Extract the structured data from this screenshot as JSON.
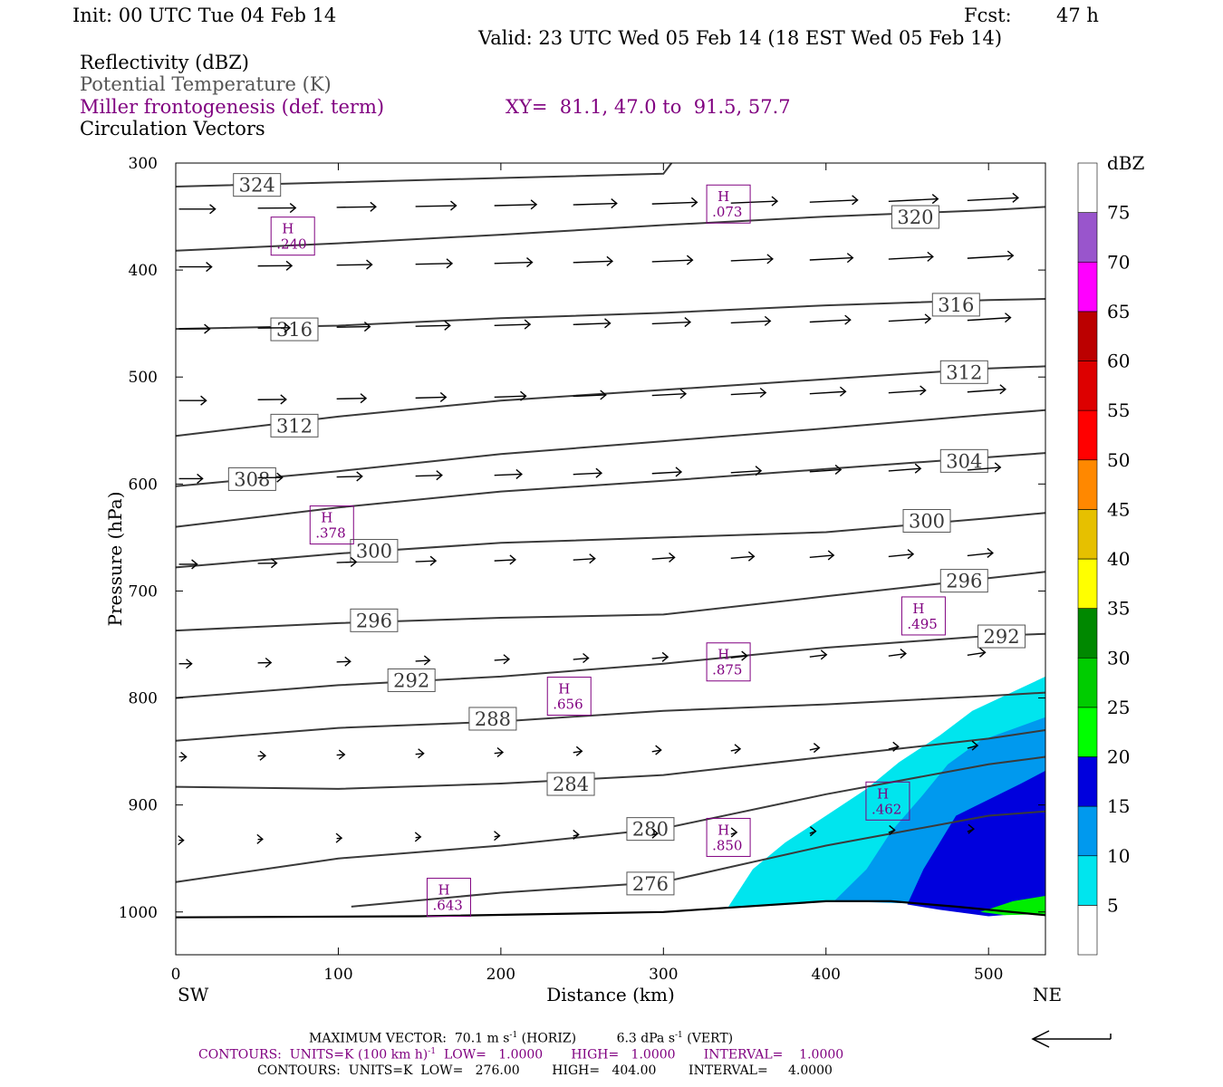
{
  "header": {
    "init": "Init: 00 UTC Tue 04 Feb 14",
    "fcst_label": "Fcst:",
    "fcst_value": "47 h",
    "valid": "Valid: 23 UTC Wed 05 Feb 14 (18 EST Wed 05 Feb 14)"
  },
  "fields": {
    "reflectivity": "Reflectivity (dBZ)",
    "potential_temp": "Potential Temperature (K)",
    "miller": "Miller frontogenesis (def. term)",
    "xy": "XY=  81.1, 47.0 to  91.5, 57.7",
    "vectors": "Circulation Vectors"
  },
  "colors": {
    "purple": "#800080",
    "isentrope": "#3a3a3a",
    "gray_text": "#555555"
  },
  "chart_data": {
    "type": "cross-section",
    "xlabel": "Distance (km)",
    "ylabel": "Pressure (hPa)",
    "x_ticks": [
      "0",
      "100",
      "200",
      "300",
      "400",
      "500"
    ],
    "y_ticks": [
      "300",
      "400",
      "500",
      "600",
      "700",
      "800",
      "900",
      "1000"
    ],
    "xlim": [
      0,
      535
    ],
    "ylim": [
      1040,
      300
    ],
    "x_end_left": "SW",
    "x_end_right": "NE",
    "colorbar": {
      "title": "dBZ",
      "levels": [
        "5",
        "10",
        "15",
        "20",
        "25",
        "30",
        "35",
        "40",
        "45",
        "50",
        "55",
        "60",
        "65",
        "70",
        "75"
      ],
      "colors": [
        "#ffffff",
        "#00e5ee",
        "#0099ee",
        "#0000dd",
        "#00ff00",
        "#00cc00",
        "#008800",
        "#ffff00",
        "#e6c000",
        "#ff8800",
        "#ff0000",
        "#dd0000",
        "#bb0000",
        "#ff00ff",
        "#9955cc",
        "#ffffff"
      ]
    },
    "isentropes": [
      {
        "label": "324",
        "points": [
          [
            0,
            322
          ],
          [
            100,
            318
          ],
          [
            200,
            314
          ],
          [
            300,
            310
          ],
          [
            305,
            300
          ]
        ],
        "label_at": [
          50,
          320
        ]
      },
      {
        "label": "320",
        "points": [
          [
            0,
            382
          ],
          [
            100,
            375
          ],
          [
            200,
            367
          ],
          [
            300,
            358
          ],
          [
            400,
            350
          ],
          [
            500,
            344
          ],
          [
            535,
            341
          ]
        ],
        "label_at": [
          455,
          350
        ]
      },
      {
        "label": "316",
        "points": [
          [
            0,
            455
          ],
          [
            100,
            452
          ],
          [
            200,
            445
          ],
          [
            300,
            440
          ],
          [
            400,
            433
          ],
          [
            500,
            428
          ],
          [
            535,
            427
          ]
        ],
        "label_at": [
          480,
          432
        ]
      },
      {
        "label": "316b",
        "text": "316",
        "points": [
          [
            0,
            455
          ]
        ],
        "label_at": [
          73,
          455
        ]
      },
      {
        "label": "312",
        "points": [
          [
            0,
            555
          ],
          [
            100,
            537
          ],
          [
            200,
            522
          ],
          [
            300,
            512
          ],
          [
            400,
            502
          ],
          [
            500,
            492
          ],
          [
            535,
            490
          ]
        ],
        "label_at": [
          73,
          545
        ]
      },
      {
        "label": "312b",
        "text": "312",
        "points": [
          [
            0,
            555
          ]
        ],
        "label_at": [
          485,
          495
        ]
      },
      {
        "label": "308",
        "points": [
          [
            0,
            602
          ],
          [
            100,
            588
          ],
          [
            200,
            572
          ],
          [
            300,
            560
          ],
          [
            400,
            548
          ],
          [
            500,
            535
          ],
          [
            535,
            531
          ]
        ],
        "label_at": [
          47,
          595
        ]
      },
      {
        "label": "304",
        "points": [
          [
            0,
            640
          ],
          [
            100,
            622
          ],
          [
            200,
            607
          ],
          [
            300,
            597
          ],
          [
            400,
            586
          ],
          [
            500,
            575
          ],
          [
            535,
            571
          ]
        ],
        "label_at": [
          485,
          578
        ]
      },
      {
        "label": "300",
        "points": [
          [
            0,
            678
          ],
          [
            100,
            665
          ],
          [
            200,
            655
          ],
          [
            300,
            650
          ],
          [
            400,
            645
          ],
          [
            500,
            632
          ],
          [
            535,
            627
          ]
        ],
        "label_at": [
          122,
          662
        ]
      },
      {
        "label": "300b",
        "text": "300",
        "points": [
          [
            0,
            678
          ]
        ],
        "label_at": [
          462,
          634
        ]
      },
      {
        "label": "296",
        "points": [
          [
            0,
            737
          ],
          [
            100,
            730
          ],
          [
            200,
            725
          ],
          [
            300,
            722
          ],
          [
            400,
            705
          ],
          [
            500,
            688
          ],
          [
            535,
            682
          ]
        ],
        "label_at": [
          122,
          727
        ]
      },
      {
        "label": "296b",
        "text": "296",
        "points": [
          [
            0,
            737
          ]
        ],
        "label_at": [
          485,
          690
        ]
      },
      {
        "label": "292",
        "points": [
          [
            0,
            800
          ],
          [
            100,
            788
          ],
          [
            200,
            780
          ],
          [
            300,
            768
          ],
          [
            400,
            753
          ],
          [
            500,
            742
          ],
          [
            535,
            740
          ]
        ],
        "label_at": [
          145,
          783
        ]
      },
      {
        "label": "292b",
        "text": "292",
        "points": [
          [
            0,
            800
          ]
        ],
        "label_at": [
          508,
          742
        ]
      },
      {
        "label": "288",
        "points": [
          [
            0,
            840
          ],
          [
            100,
            828
          ],
          [
            200,
            822
          ],
          [
            300,
            812
          ],
          [
            400,
            806
          ],
          [
            500,
            798
          ],
          [
            535,
            795
          ]
        ],
        "label_at": [
          195,
          819
        ]
      },
      {
        "label": "284",
        "points": [
          [
            0,
            883
          ],
          [
            100,
            885
          ],
          [
            200,
            880
          ],
          [
            300,
            872
          ],
          [
            400,
            855
          ],
          [
            500,
            838
          ],
          [
            535,
            830
          ]
        ],
        "label_at": [
          243,
          880
        ]
      },
      {
        "label": "280",
        "points": [
          [
            0,
            972
          ],
          [
            100,
            950
          ],
          [
            200,
            938
          ],
          [
            300,
            922
          ],
          [
            400,
            890
          ],
          [
            500,
            862
          ],
          [
            535,
            855
          ]
        ],
        "label_at": [
          292,
          922
        ]
      },
      {
        "label": "276",
        "points": [
          [
            108,
            995
          ],
          [
            200,
            982
          ],
          [
            300,
            972
          ],
          [
            400,
            938
          ],
          [
            500,
            910
          ],
          [
            535,
            906
          ]
        ],
        "label_at": [
          292,
          973
        ]
      }
    ],
    "frontogenesis_maxima": [
      {
        "label": "H",
        "value": ".073",
        "at": [
          340,
          340
        ]
      },
      {
        "label": "H",
        "value": ".240",
        "at": [
          72,
          370
        ]
      },
      {
        "label": "H",
        "value": ".378",
        "at": [
          96,
          640
        ]
      },
      {
        "label": "H",
        "value": ".495",
        "at": [
          460,
          725
        ]
      },
      {
        "label": "H",
        "value": ".875",
        "at": [
          340,
          768
        ]
      },
      {
        "label": "H",
        "value": ".656",
        "at": [
          242,
          800
        ]
      },
      {
        "label": "H",
        "value": ".462",
        "at": [
          438,
          898
        ]
      },
      {
        "label": "H",
        "value": ".850",
        "at": [
          340,
          932
        ]
      },
      {
        "label": "H",
        "value": ".643",
        "at": [
          168,
          988
        ]
      }
    ],
    "max_vector_arrow": true
  },
  "footer": {
    "max_vector": "MAXIMUM VECTOR:  70.1 m s",
    "max_vector_sup": "-1",
    "max_vector_mid": " (HORIZ)          6.3 dPa s",
    "max_vector_sup2": "-1",
    "max_vector_end": " (VERT)",
    "contours1_a": "CONTOURS:  UNITS=K (100 km h)",
    "contours1_sup": "-1",
    "contours1_b": "  LOW=   1.0000       HIGH=   1.0000       INTERVAL=    1.0000",
    "contours2": "CONTOURS:  UNITS=K  LOW=   276.00        HIGH=   404.00        INTERVAL=     4.0000"
  }
}
